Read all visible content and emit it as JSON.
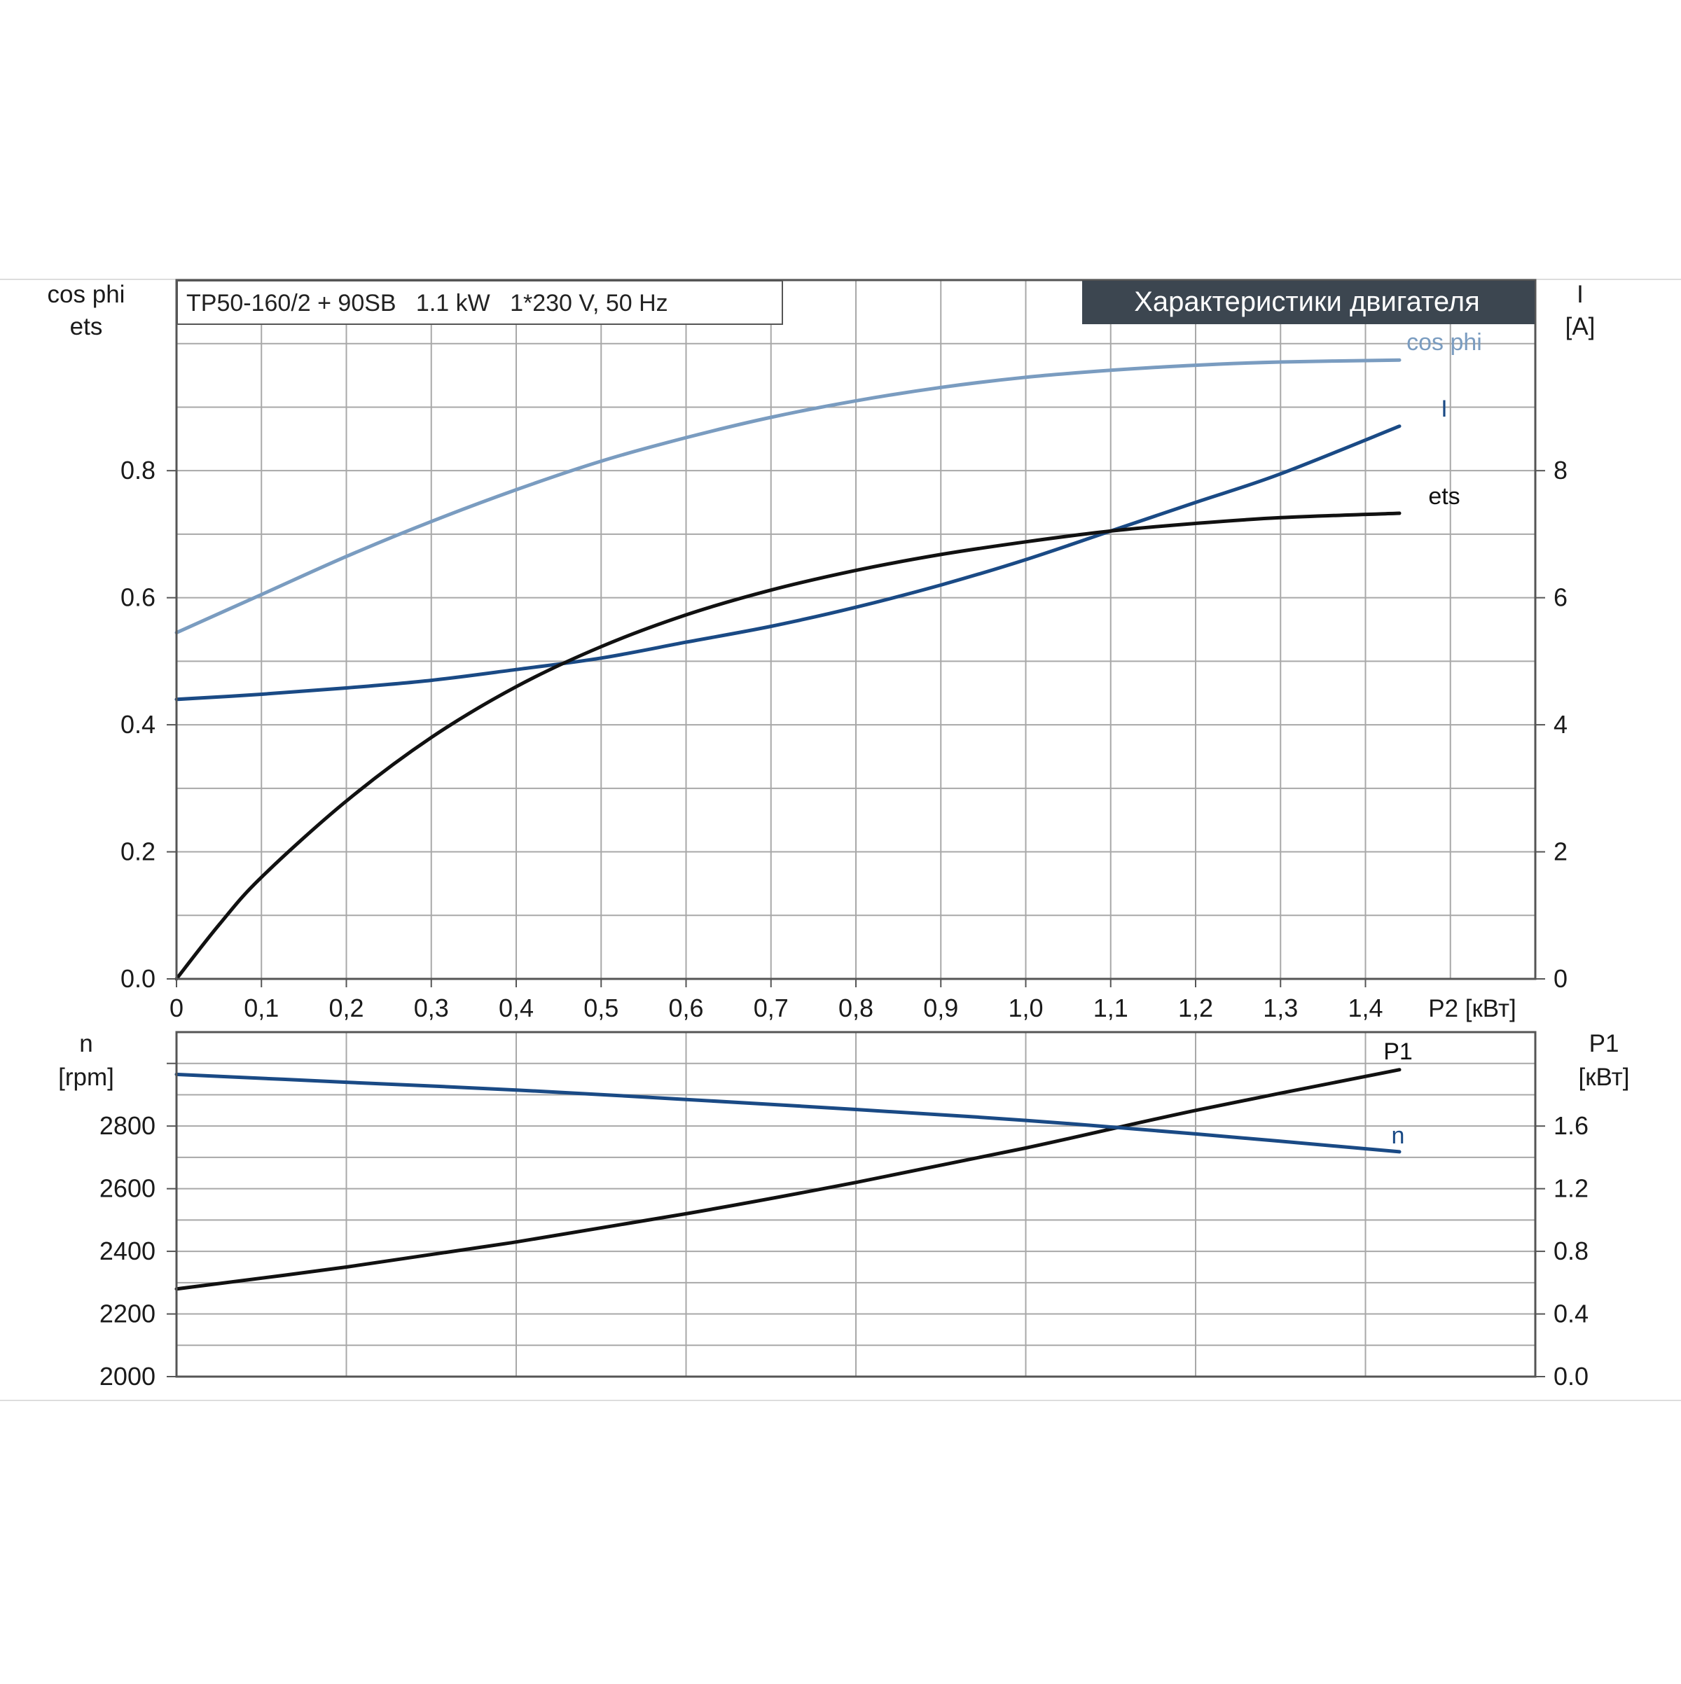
{
  "header": {
    "model_label": "TP50-160/2 + 90SB   1.1 kW   1*230 V, 50 Hz",
    "title": "Характеристики двигателя"
  },
  "colors": {
    "cos_phi": "#7a9cc0",
    "current": "#1a4a85",
    "efficiency": "#111111",
    "speed": "#1a4a85",
    "input_power": "#111111",
    "title_bg": "#3c4650",
    "grid": "#a8a8a8"
  },
  "chart_data": [
    {
      "type": "line",
      "panel": "upper",
      "xlabel": "P2 [кВт]",
      "xlim": [
        0,
        1.6
      ],
      "x_ticks": [
        "0",
        "0,1",
        "0,2",
        "0,3",
        "0,4",
        "0,5",
        "0,6",
        "0,7",
        "0,8",
        "0,9",
        "1,0",
        "1,1",
        "1,2",
        "1,3",
        "1,4"
      ],
      "ylabel_left": [
        "cos phi",
        "ets"
      ],
      "ylim_left": [
        0,
        1.1
      ],
      "y_ticks_left": [
        "0.0",
        "0.2",
        "0.4",
        "0.6",
        "0.8"
      ],
      "ylabel_right": [
        "I",
        "[A]"
      ],
      "ylim_right": [
        0,
        11
      ],
      "y_ticks_right": [
        "0",
        "2",
        "4",
        "6",
        "8"
      ],
      "grid": true,
      "series": [
        {
          "name": "cos phi",
          "axis": "left",
          "color_key": "cos_phi",
          "x": [
            0,
            0.1,
            0.2,
            0.3,
            0.4,
            0.5,
            0.6,
            0.7,
            0.8,
            0.9,
            1.0,
            1.1,
            1.2,
            1.3,
            1.44
          ],
          "y": [
            0.545,
            0.605,
            0.665,
            0.72,
            0.77,
            0.815,
            0.852,
            0.884,
            0.91,
            0.931,
            0.947,
            0.958,
            0.966,
            0.971,
            0.974
          ]
        },
        {
          "name": "I",
          "axis": "right",
          "color_key": "current",
          "x": [
            0,
            0.1,
            0.2,
            0.3,
            0.4,
            0.5,
            0.6,
            0.7,
            0.8,
            0.9,
            1.0,
            1.1,
            1.2,
            1.3,
            1.44
          ],
          "y": [
            4.4,
            4.48,
            4.58,
            4.7,
            4.87,
            5.05,
            5.3,
            5.55,
            5.85,
            6.2,
            6.6,
            7.05,
            7.5,
            7.95,
            8.7
          ]
        },
        {
          "name": "ets",
          "axis": "left",
          "color_key": "efficiency",
          "x": [
            0,
            0.05,
            0.1,
            0.2,
            0.3,
            0.4,
            0.5,
            0.6,
            0.7,
            0.8,
            0.9,
            1.0,
            1.1,
            1.2,
            1.3,
            1.44
          ],
          "y": [
            0.0,
            0.085,
            0.16,
            0.28,
            0.38,
            0.46,
            0.523,
            0.573,
            0.612,
            0.643,
            0.668,
            0.688,
            0.705,
            0.717,
            0.726,
            0.733
          ]
        }
      ]
    },
    {
      "type": "line",
      "panel": "lower",
      "xlim": [
        0,
        1.6
      ],
      "ylabel_left": [
        "n",
        "[rpm]"
      ],
      "ylim_left": [
        2000,
        3100
      ],
      "y_ticks_left": [
        "2000",
        "2200",
        "2400",
        "2600",
        "2800"
      ],
      "ylabel_right": [
        "P1",
        "[кВт]"
      ],
      "ylim_right": [
        0,
        2.2
      ],
      "y_ticks_right": [
        "0.0",
        "0.4",
        "0.8",
        "1.2",
        "1.6"
      ],
      "grid": true,
      "series": [
        {
          "name": "P1",
          "axis": "right",
          "color_key": "input_power",
          "x": [
            0,
            0.2,
            0.4,
            0.6,
            0.8,
            1.0,
            1.2,
            1.44
          ],
          "y": [
            0.56,
            0.7,
            0.86,
            1.04,
            1.24,
            1.46,
            1.7,
            1.96
          ]
        },
        {
          "name": "n",
          "axis": "left",
          "color_key": "speed",
          "x": [
            0,
            0.2,
            0.4,
            0.6,
            0.8,
            1.0,
            1.2,
            1.44
          ],
          "y": [
            2965,
            2940,
            2915,
            2885,
            2853,
            2818,
            2775,
            2718
          ]
        }
      ]
    }
  ]
}
